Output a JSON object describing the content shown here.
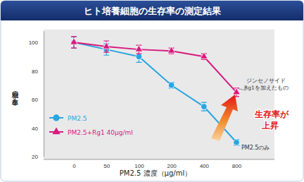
{
  "chart_data": {
    "type": "line",
    "title": "ヒト培養細胞の生存率の測定結果",
    "x_label": "PM2.5 濃度（μg/ml）",
    "y_label": "細胞の生存率（%）",
    "categories": [
      "0",
      "50",
      "100",
      "200",
      "400",
      "800"
    ],
    "series": [
      {
        "name": "PM2.5",
        "color": "#2aa6df",
        "marker": "circle",
        "values": [
          100,
          95,
          90,
          70,
          55,
          30
        ],
        "error": [
          4,
          4,
          4,
          2,
          3,
          2
        ]
      },
      {
        "name": "PM2.5+Rg1 40μg/ml",
        "color": "#d81b7d",
        "marker": "triangle",
        "values": [
          100,
          97,
          95,
          94,
          90,
          65
        ],
        "error": [
          4,
          4,
          3,
          2,
          2,
          3
        ]
      }
    ],
    "ylim": [
      20,
      108
    ],
    "yticks": [
      20,
      40,
      60,
      80,
      100
    ],
    "annotations": [
      "ジンセノサイド",
      "Rg1を加えたもの",
      "PM2.5のみ",
      "生存率が",
      "上昇"
    ],
    "legend": "lower left"
  }
}
